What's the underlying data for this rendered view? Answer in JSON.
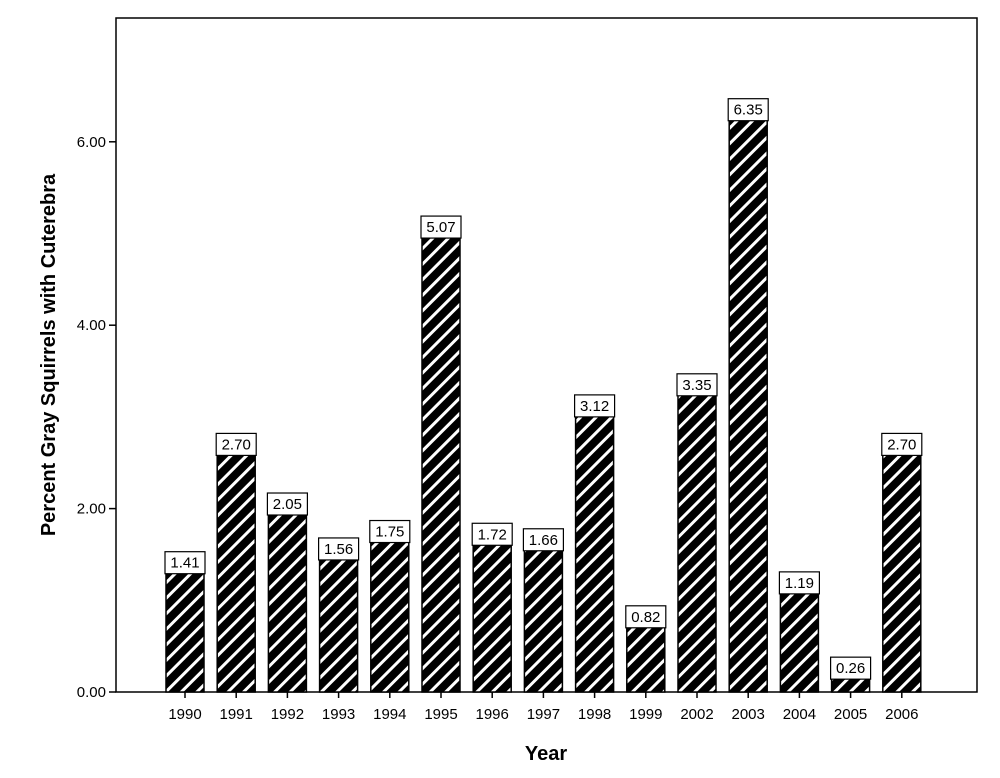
{
  "chart_data": {
    "type": "bar",
    "title": "",
    "xlabel": "Year",
    "ylabel": "Percent Gray Squirrels with Cuterebra",
    "categories": [
      "1990",
      "1991",
      "1992",
      "1993",
      "1994",
      "1995",
      "1996",
      "1997",
      "1998",
      "1999",
      "2002",
      "2003",
      "2004",
      "2005",
      "2006"
    ],
    "values": [
      1.41,
      2.7,
      2.05,
      1.56,
      1.75,
      5.07,
      1.72,
      1.66,
      3.12,
      0.82,
      3.35,
      6.35,
      1.19,
      0.26,
      2.7
    ],
    "data_labels": [
      "1.41",
      "2.70",
      "2.05",
      "1.56",
      "1.75",
      "5.07",
      "1.72",
      "1.66",
      "3.12",
      "0.82",
      "3.35",
      "6.35",
      "1.19",
      "0.26",
      "2.70"
    ],
    "yticks": [
      0,
      2,
      4,
      6
    ],
    "ytick_labels": [
      "0.00",
      "2.00",
      "4.00",
      "6.00"
    ],
    "ylim": [
      0,
      7.35
    ],
    "grid": false,
    "legend": "none",
    "bar_fill": "diagonal-hatch",
    "colors": {
      "bar": "#000000",
      "hatch_stripe": "#ffffff",
      "label_box": "#ffffff",
      "axis": "#000000"
    }
  }
}
